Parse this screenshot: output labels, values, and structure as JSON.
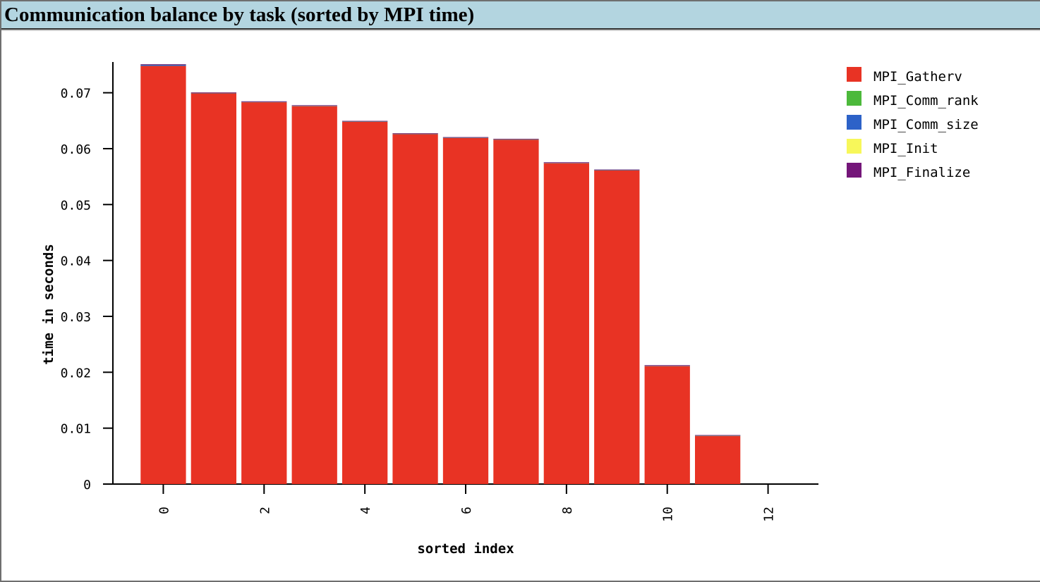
{
  "panel": {
    "title": "Communication balance by task (sorted by MPI time)"
  },
  "chart_data": {
    "type": "bar",
    "stacked": true,
    "categories": [
      0,
      1,
      2,
      3,
      4,
      5,
      6,
      7,
      8,
      9,
      10,
      11
    ],
    "xlabel": "sorted index",
    "ylabel": "time in seconds",
    "xticks": [
      0,
      2,
      4,
      6,
      8,
      10,
      12
    ],
    "xlim": [
      -1,
      13
    ],
    "yticks": [
      0,
      0.01,
      0.02,
      0.03,
      0.04,
      0.05,
      0.06,
      0.07
    ],
    "ytick_labels": [
      "0",
      "0.01",
      "0.02",
      "0.03",
      "0.04",
      "0.05",
      "0.06",
      "0.07"
    ],
    "ylim": [
      0,
      0.0755
    ],
    "legend_position": "top-right",
    "series": [
      {
        "name": "MPI_Gatherv",
        "color": "#e83324",
        "values": [
          0.0748,
          0.0699,
          0.0683,
          0.0676,
          0.0648,
          0.0626,
          0.0619,
          0.0616,
          0.0574,
          0.0561,
          0.0211,
          0.0086
        ]
      },
      {
        "name": "MPI_Comm_rank",
        "color": "#4cb93b",
        "values": [
          1e-05,
          1e-05,
          1e-05,
          1e-05,
          1e-05,
          1e-05,
          1e-05,
          1e-05,
          1e-05,
          1e-05,
          1e-05,
          1e-05
        ]
      },
      {
        "name": "MPI_Comm_size",
        "color": "#2d62c8",
        "values": [
          0.0002,
          5e-05,
          5e-05,
          5e-05,
          5e-05,
          5e-05,
          5e-05,
          5e-05,
          5e-05,
          5e-05,
          5e-05,
          5e-05
        ]
      },
      {
        "name": "MPI_Init",
        "color": "#f7f75a",
        "values": [
          1e-05,
          1e-05,
          1e-05,
          1e-05,
          1e-05,
          1e-05,
          1e-05,
          1e-05,
          1e-05,
          1e-05,
          1e-05,
          1e-05
        ]
      },
      {
        "name": "MPI_Finalize",
        "color": "#741679",
        "values": [
          0.0001,
          0.0001,
          0.0001,
          0.0001,
          0.0001,
          0.0001,
          0.0001,
          0.0001,
          0.0001,
          0.0001,
          0.0001,
          0.0001
        ]
      }
    ]
  }
}
